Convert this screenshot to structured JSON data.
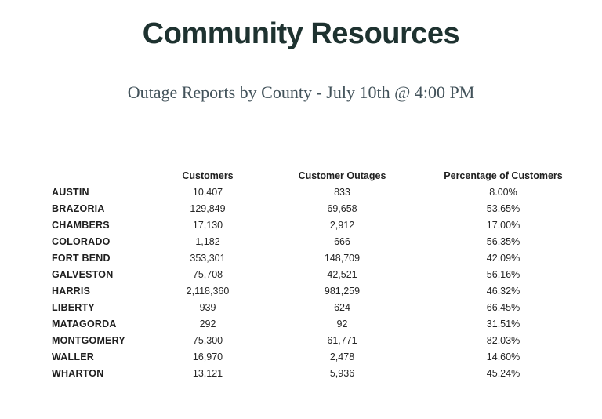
{
  "page": {
    "title": "Community Resources",
    "subtitle": "Outage Reports by County - July 10th @ 4:00 PM"
  },
  "table": {
    "columns": [
      "",
      "Customers",
      "Customer Outages",
      "Percentage of Customers"
    ],
    "rows": [
      {
        "county": "AUSTIN",
        "customers": "10,407",
        "outages": "833",
        "percentage": "8.00%"
      },
      {
        "county": "BRAZORIA",
        "customers": "129,849",
        "outages": "69,658",
        "percentage": "53.65%"
      },
      {
        "county": "CHAMBERS",
        "customers": "17,130",
        "outages": "2,912",
        "percentage": "17.00%"
      },
      {
        "county": "COLORADO",
        "customers": "1,182",
        "outages": "666",
        "percentage": "56.35%"
      },
      {
        "county": "FORT BEND",
        "customers": "353,301",
        "outages": "148,709",
        "percentage": "42.09%"
      },
      {
        "county": "GALVESTON",
        "customers": "75,708",
        "outages": "42,521",
        "percentage": "56.16%"
      },
      {
        "county": "HARRIS",
        "customers": "2,118,360",
        "outages": "981,259",
        "percentage": "46.32%"
      },
      {
        "county": "LIBERTY",
        "customers": "939",
        "outages": "624",
        "percentage": "66.45%"
      },
      {
        "county": "MATAGORDA",
        "customers": "292",
        "outages": "92",
        "percentage": "31.51%"
      },
      {
        "county": "MONTGOMERY",
        "customers": "75,300",
        "outages": "61,771",
        "percentage": "82.03%"
      },
      {
        "county": "WALLER",
        "customers": "16,970",
        "outages": "2,478",
        "percentage": "14.60%"
      },
      {
        "county": "WHARTON",
        "customers": "13,121",
        "outages": "5,936",
        "percentage": "45.24%"
      }
    ]
  },
  "colors": {
    "title": "#1e3230",
    "subtitle": "#42525a",
    "table_text": "#262626",
    "background": "#ffffff"
  }
}
